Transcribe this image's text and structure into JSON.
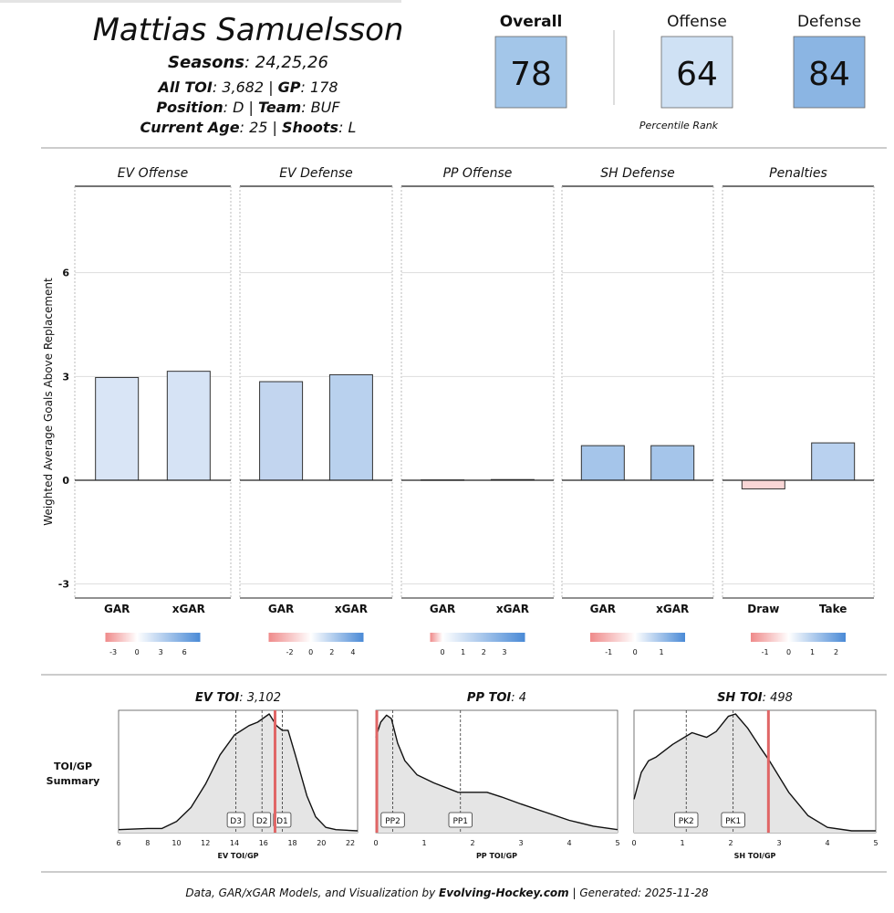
{
  "header": {
    "player_name": "Mattias Samuelsson",
    "seasons_label": "Seasons",
    "seasons_value": ": 24,25,26",
    "toi_label": "All TOI",
    "toi_value": ": 3,682 | ",
    "gp_label": "GP",
    "gp_value": ": 178",
    "position_label": "Position",
    "position_value": ": D | ",
    "team_label": "Team",
    "team_value": ": BUF",
    "age_label": "Current Age",
    "age_value": ": 25 | ",
    "shoots_label": "Shoots",
    "shoots_value": ": L"
  },
  "ratings": {
    "overall_label": "Overall",
    "overall_value": "78",
    "offense_label": "Offense",
    "offense_value": "64",
    "defense_label": "Defense",
    "defense_value": "84",
    "caption": "Percentile Rank",
    "colors": {
      "overall": "#a3c6e9",
      "offense": "#cfe1f4",
      "defense": "#8bb5e3"
    }
  },
  "footer": {
    "prefix": "Data, GAR/xGAR Models, and Visualization by ",
    "brand": "Evolving-Hockey.com",
    "suffix": " | Generated: 2025-11-28"
  },
  "chart_data": [
    {
      "type": "bar",
      "ylabel": "Weighted Average Goals Above Replacement",
      "ylim": [
        -3.4,
        8.5
      ],
      "yticks": [
        "-3",
        "0",
        "3",
        "6"
      ],
      "ytick_values": [
        -3,
        0,
        3,
        6
      ],
      "grid": true,
      "panels": [
        {
          "title": "EV Offense",
          "categories": [
            "GAR",
            "xGAR"
          ],
          "values": [
            2.97,
            3.15
          ],
          "colors": [
            "#d9e5f6",
            "#d6e3f5"
          ],
          "legend_ticks": [
            "-3",
            "0",
            "3",
            "6"
          ],
          "legend_values": [
            -3,
            0,
            3,
            6
          ],
          "legend_range": [
            -4,
            8
          ]
        },
        {
          "title": "EV Defense",
          "categories": [
            "GAR",
            "xGAR"
          ],
          "values": [
            2.85,
            3.05
          ],
          "colors": [
            "#c2d5ef",
            "#b9d1ee"
          ],
          "legend_ticks": [
            "-2",
            "0",
            "2",
            "4"
          ],
          "legend_values": [
            -2,
            0,
            2,
            4
          ],
          "legend_range": [
            -4,
            5
          ]
        },
        {
          "title": "PP Offense",
          "categories": [
            "GAR",
            "xGAR"
          ],
          "values": [
            0.01,
            0.02
          ],
          "colors": [
            "#eef3fb",
            "#eef3fb"
          ],
          "legend_ticks": [
            "0",
            "1",
            "2",
            "3"
          ],
          "legend_values": [
            0,
            1,
            2,
            3
          ],
          "legend_range": [
            -0.6,
            4
          ]
        },
        {
          "title": "SH Defense",
          "categories": [
            "GAR",
            "xGAR"
          ],
          "values": [
            1.0,
            1.0
          ],
          "colors": [
            "#a5c5ea",
            "#a5c5ea"
          ],
          "legend_ticks": [
            "-1",
            "0",
            "1"
          ],
          "legend_values": [
            -1,
            0,
            1
          ],
          "legend_range": [
            -1.7,
            1.9
          ]
        },
        {
          "title": "Penalties",
          "categories": [
            "Draw",
            "Take"
          ],
          "values": [
            -0.25,
            1.08
          ],
          "colors": [
            "#f8d6d6",
            "#b9d1ef"
          ],
          "legend_ticks": [
            "-1",
            "0",
            "1",
            "2"
          ],
          "legend_values": [
            -1,
            0,
            1,
            2
          ],
          "legend_range": [
            -1.6,
            2.4
          ]
        }
      ]
    },
    {
      "type": "area",
      "row_label": [
        "TOI/GP",
        "Summary"
      ],
      "panels": [
        {
          "title_label": "EV TOI",
          "title_value": ": 3,102",
          "xlabel": "EV TOI/GP",
          "xlim": [
            6,
            22.5
          ],
          "xticks": [
            "6",
            "8",
            "10",
            "12",
            "14",
            "16",
            "18",
            "20",
            "22"
          ],
          "xtick_values": [
            6,
            8,
            10,
            12,
            14,
            16,
            18,
            20,
            22
          ],
          "player_value": 16.8,
          "markers": [
            {
              "label": "D3",
              "x": 14.1
            },
            {
              "label": "D2",
              "x": 15.9
            },
            {
              "label": "D1",
              "x": 17.3
            }
          ],
          "density": [
            [
              6,
              0.01
            ],
            [
              7,
              0.015
            ],
            [
              8,
              0.02
            ],
            [
              9,
              0.02
            ],
            [
              10,
              0.08
            ],
            [
              11,
              0.2
            ],
            [
              12,
              0.4
            ],
            [
              13,
              0.65
            ],
            [
              14,
              0.82
            ],
            [
              15,
              0.9
            ],
            [
              15.6,
              0.93
            ],
            [
              16.4,
              1.0
            ],
            [
              16.9,
              0.9
            ],
            [
              17.3,
              0.86
            ],
            [
              17.7,
              0.86
            ],
            [
              18.2,
              0.65
            ],
            [
              19,
              0.3
            ],
            [
              19.6,
              0.12
            ],
            [
              20.3,
              0.03
            ],
            [
              21,
              0.01
            ],
            [
              22.5,
              0.0
            ]
          ]
        },
        {
          "title_label": "PP TOI",
          "title_value": ": 4",
          "xlabel": "PP TOI/GP",
          "xlim": [
            0,
            5
          ],
          "xticks": [
            "0",
            "1",
            "2",
            "3",
            "4",
            "5"
          ],
          "xtick_values": [
            0,
            1,
            2,
            3,
            4,
            5
          ],
          "player_value": 0.02,
          "markers": [
            {
              "label": "PP2",
              "x": 0.35
            },
            {
              "label": "PP1",
              "x": 1.75
            }
          ],
          "density": [
            [
              0,
              0.8
            ],
            [
              0.1,
              0.93
            ],
            [
              0.22,
              0.99
            ],
            [
              0.32,
              0.96
            ],
            [
              0.45,
              0.75
            ],
            [
              0.6,
              0.6
            ],
            [
              0.85,
              0.48
            ],
            [
              1.2,
              0.41
            ],
            [
              1.7,
              0.33
            ],
            [
              2.3,
              0.33
            ],
            [
              2.6,
              0.29
            ],
            [
              3.0,
              0.23
            ],
            [
              3.5,
              0.16
            ],
            [
              4.0,
              0.09
            ],
            [
              4.5,
              0.04
            ],
            [
              5,
              0.01
            ]
          ]
        },
        {
          "title_label": "SH TOI",
          "title_value": ": 498",
          "xlabel": "SH TOI/GP",
          "xlim": [
            0,
            5
          ],
          "xticks": [
            "0",
            "1",
            "2",
            "3",
            "4",
            "5"
          ],
          "xtick_values": [
            0,
            1,
            2,
            3,
            4,
            5
          ],
          "player_value": 2.78,
          "markers": [
            {
              "label": "PK2",
              "x": 1.08
            },
            {
              "label": "PK1",
              "x": 2.05
            }
          ],
          "density": [
            [
              0,
              0.27
            ],
            [
              0.15,
              0.5
            ],
            [
              0.3,
              0.6
            ],
            [
              0.45,
              0.63
            ],
            [
              0.8,
              0.74
            ],
            [
              1.2,
              0.84
            ],
            [
              1.5,
              0.8
            ],
            [
              1.7,
              0.85
            ],
            [
              1.95,
              0.98
            ],
            [
              2.1,
              1.0
            ],
            [
              2.35,
              0.88
            ],
            [
              2.6,
              0.72
            ],
            [
              2.8,
              0.6
            ],
            [
              3.2,
              0.33
            ],
            [
              3.6,
              0.13
            ],
            [
              4.0,
              0.03
            ],
            [
              4.5,
              0.0
            ],
            [
              5,
              0.0
            ]
          ]
        }
      ]
    }
  ]
}
